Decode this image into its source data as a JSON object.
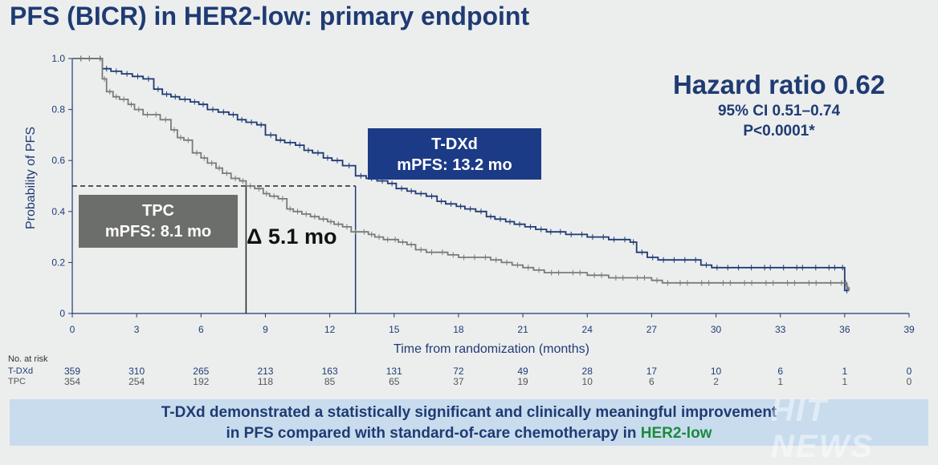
{
  "title": "PFS (BICR) in HER2-low: primary endpoint",
  "hazard": {
    "main": "Hazard ratio 0.62",
    "ci": "95% CI 0.51–0.74",
    "p": "P<0.0001*"
  },
  "labels": {
    "tdxd_name": "T-DXd",
    "tdxd_mpfs": "mPFS: 13.2 mo",
    "tpc_name": "TPC",
    "tpc_mpfs": "mPFS: 8.1 mo",
    "delta": "Δ 5.1 mo"
  },
  "risk_table": {
    "title": "No. at risk",
    "rows": [
      {
        "label": "T-DXd",
        "counts": [
          "359",
          "310",
          "265",
          "213",
          "163",
          "131",
          "72",
          "49",
          "28",
          "17",
          "10",
          "6",
          "1",
          "0"
        ]
      },
      {
        "label": "TPC",
        "counts": [
          "354",
          "254",
          "192",
          "118",
          "85",
          "65",
          "37",
          "19",
          "10",
          "6",
          "2",
          "1",
          "1",
          "0"
        ]
      }
    ]
  },
  "banner": {
    "text1": "T-DXd demonstrated a statistically significant and clinically meaningful improvement",
    "text2": "in PFS compared with standard-of-care chemotherapy in ",
    "highlight": "HER2-low"
  },
  "watermark": "HIT NEWS",
  "colors": {
    "tdxd": "#1f3b73",
    "tpc": "#7a7a78",
    "title": "#1f3b73",
    "highlight": "#1d8a3e"
  },
  "chart_data": {
    "type": "line",
    "title": "PFS (BICR) in HER2-low: primary endpoint",
    "xlabel": "Time from randomization (months)",
    "ylabel": "Probability of PFS",
    "xlim": [
      0,
      39
    ],
    "ylim": [
      0,
      1.0
    ],
    "xticks": [
      0,
      3,
      6,
      9,
      12,
      15,
      18,
      21,
      24,
      27,
      30,
      33,
      36,
      39
    ],
    "yticks": [
      0,
      0.2,
      0.4,
      0.6,
      0.8,
      1.0
    ],
    "ytick_labels": [
      "0",
      "0.2",
      "0.4",
      "0.6",
      "0.8",
      "1.0"
    ],
    "median_line_y": 0.5,
    "medians": {
      "TPC": 8.1,
      "T-DXd": 13.2
    },
    "series": [
      {
        "name": "T-DXd",
        "x": [
          0,
          1.2,
          1.4,
          1.8,
          2.3,
          2.8,
          3.3,
          3.8,
          4.2,
          4.6,
          5.0,
          5.5,
          5.9,
          6.3,
          6.8,
          7.3,
          7.7,
          8.1,
          8.6,
          9.0,
          9.5,
          9.9,
          10.4,
          10.8,
          11.2,
          11.7,
          12.1,
          12.6,
          13.2,
          13.7,
          14.2,
          14.7,
          15.1,
          15.6,
          16.0,
          16.5,
          17.0,
          17.4,
          17.9,
          18.3,
          18.8,
          19.3,
          19.7,
          20.2,
          20.6,
          21.1,
          21.6,
          22.1,
          22.5,
          23.0,
          23.5,
          24.0,
          24.5,
          25.0,
          25.5,
          26.0,
          26.3,
          26.8,
          27.3,
          27.8,
          28.3,
          28.8,
          29.3,
          29.8,
          30.3,
          30.8,
          31.3,
          32.0,
          32.8,
          33.5,
          34.3,
          35.0,
          35.8,
          36.0,
          36.2
        ],
        "y": [
          1.0,
          1.0,
          0.96,
          0.95,
          0.94,
          0.93,
          0.92,
          0.88,
          0.86,
          0.85,
          0.84,
          0.83,
          0.82,
          0.8,
          0.79,
          0.78,
          0.76,
          0.75,
          0.74,
          0.7,
          0.68,
          0.67,
          0.66,
          0.64,
          0.63,
          0.61,
          0.6,
          0.58,
          0.54,
          0.53,
          0.52,
          0.51,
          0.49,
          0.48,
          0.47,
          0.46,
          0.44,
          0.43,
          0.42,
          0.41,
          0.4,
          0.38,
          0.37,
          0.36,
          0.35,
          0.34,
          0.33,
          0.32,
          0.32,
          0.31,
          0.31,
          0.3,
          0.3,
          0.29,
          0.29,
          0.28,
          0.24,
          0.22,
          0.21,
          0.21,
          0.21,
          0.21,
          0.19,
          0.18,
          0.18,
          0.18,
          0.18,
          0.18,
          0.18,
          0.18,
          0.18,
          0.18,
          0.18,
          0.09,
          0.09
        ]
      },
      {
        "name": "TPC",
        "x": [
          0,
          1.2,
          1.4,
          1.6,
          1.9,
          2.2,
          2.6,
          2.9,
          3.3,
          3.7,
          4.1,
          4.6,
          4.9,
          5.2,
          5.6,
          6.0,
          6.3,
          6.7,
          7.0,
          7.4,
          7.8,
          8.1,
          8.5,
          8.9,
          9.2,
          9.6,
          10.0,
          10.3,
          10.7,
          11.1,
          11.5,
          11.9,
          12.2,
          12.6,
          13.0,
          13.4,
          13.8,
          14.1,
          14.5,
          14.9,
          15.2,
          15.6,
          16.0,
          16.5,
          17.0,
          17.5,
          18.0,
          18.5,
          19.0,
          19.5,
          20.0,
          20.5,
          21.0,
          21.5,
          22.0,
          23.0,
          24.0,
          25.0,
          26.0,
          27.0,
          27.5,
          28.0,
          29.0,
          30.0,
          31.0,
          32.0,
          33.0,
          34.0,
          35.0,
          35.7,
          36.0,
          36.1,
          36.2
        ],
        "y": [
          1.0,
          1.0,
          0.92,
          0.87,
          0.85,
          0.84,
          0.82,
          0.8,
          0.78,
          0.78,
          0.76,
          0.72,
          0.69,
          0.68,
          0.63,
          0.61,
          0.59,
          0.57,
          0.55,
          0.53,
          0.52,
          0.5,
          0.49,
          0.47,
          0.46,
          0.45,
          0.41,
          0.4,
          0.39,
          0.38,
          0.37,
          0.36,
          0.35,
          0.34,
          0.32,
          0.32,
          0.31,
          0.3,
          0.29,
          0.29,
          0.28,
          0.27,
          0.25,
          0.24,
          0.24,
          0.23,
          0.22,
          0.22,
          0.22,
          0.21,
          0.2,
          0.19,
          0.18,
          0.17,
          0.16,
          0.16,
          0.15,
          0.14,
          0.14,
          0.13,
          0.12,
          0.12,
          0.12,
          0.12,
          0.12,
          0.12,
          0.12,
          0.12,
          0.12,
          0.12,
          0.12,
          0.1,
          0.09
        ]
      }
    ]
  }
}
